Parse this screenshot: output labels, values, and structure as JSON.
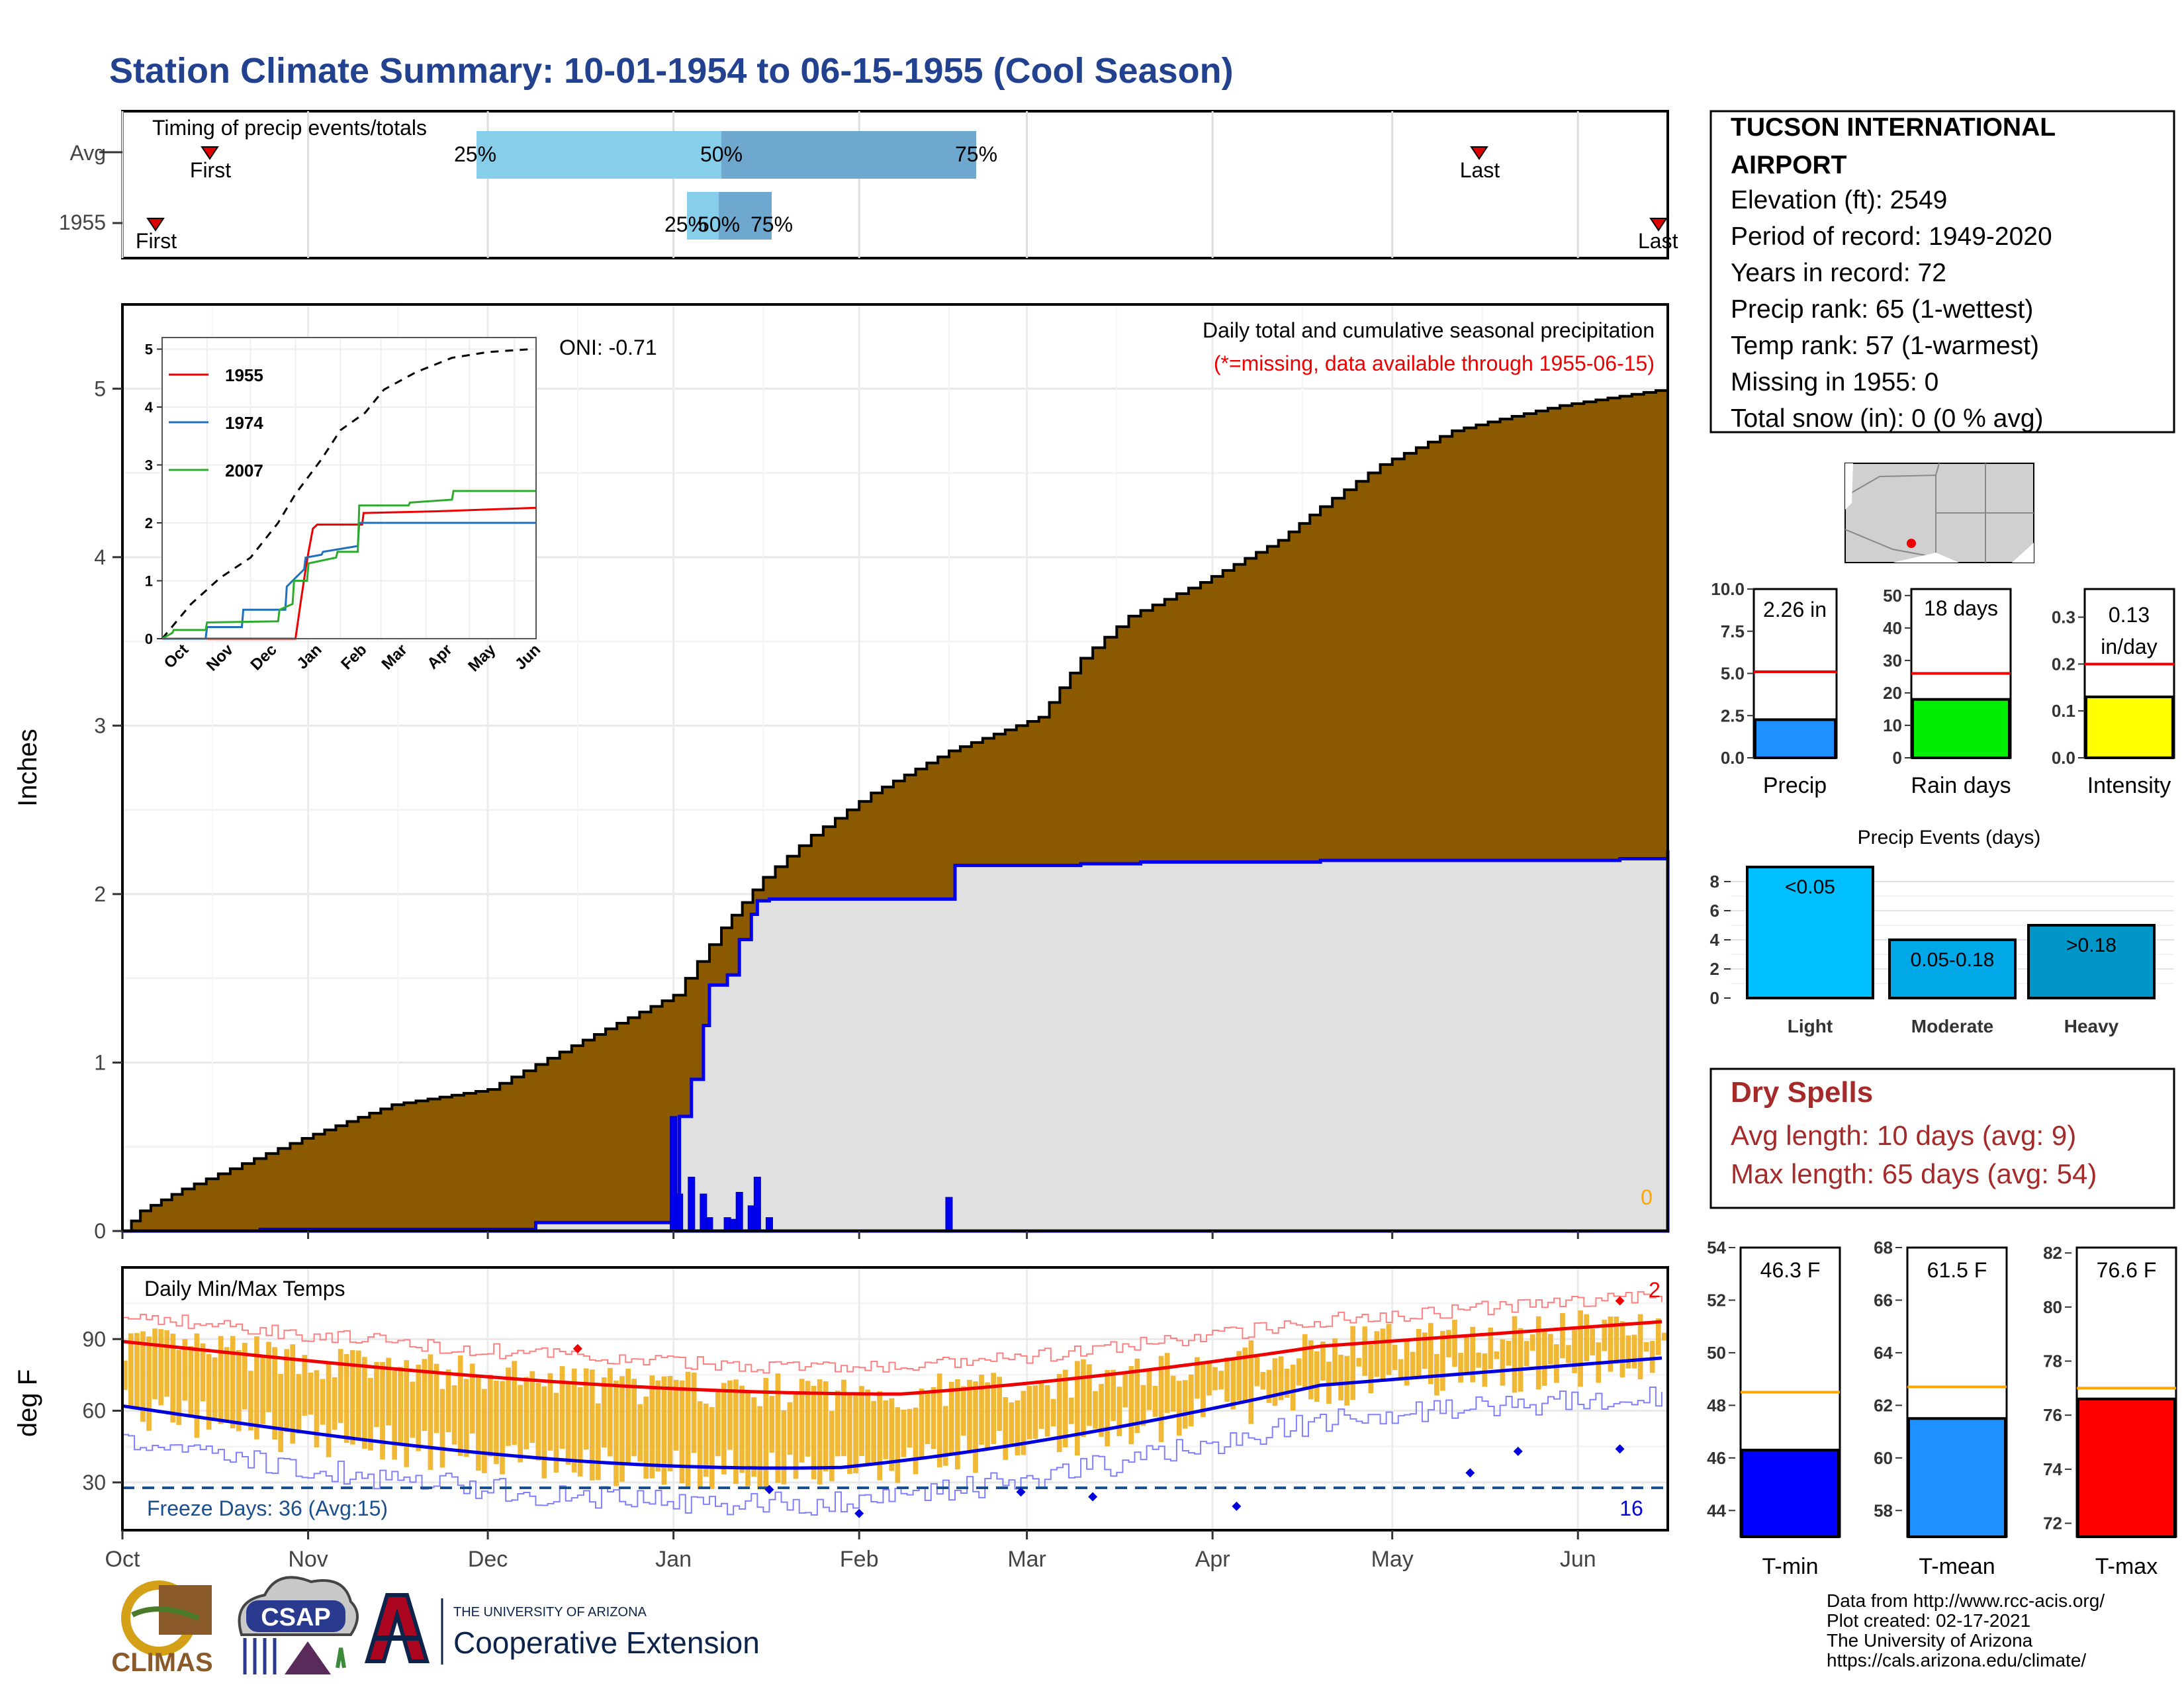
{
  "title": "Station Climate Summary: 10-01-1954 to 06-15-1955 (Cool Season)",
  "months": [
    "Oct",
    "Nov",
    "Dec",
    "Jan",
    "Feb",
    "Mar",
    "Apr",
    "May",
    "Jun"
  ],
  "timing": {
    "label": "Timing of precip events/totals",
    "rows": [
      {
        "name": "Avg",
        "first": "First",
        "last": "Last",
        "q25": "25%",
        "q50": "50%",
        "q75": "75%"
      },
      {
        "name": "1955",
        "first": "First",
        "last": "Last",
        "q25": "25%",
        "q50": "50%",
        "q75": "75%"
      }
    ]
  },
  "precip": {
    "ylabel": "Inches",
    "yticks": [
      "0",
      "1",
      "2",
      "3",
      "4",
      "5"
    ],
    "oni": "ONI: -0.71",
    "note1": "Daily total and cumulative seasonal precipitation",
    "note2": "(*=missing, data available through 1955-06-15)",
    "missing_count": "0"
  },
  "inset": {
    "yticks": [
      "0",
      "1",
      "2",
      "3",
      "4",
      "5"
    ],
    "months": [
      "Oct",
      "Nov",
      "Dec",
      "Jan",
      "Feb",
      "Mar",
      "Apr",
      "May",
      "Jun"
    ],
    "legend": [
      "1955",
      "1974",
      "2007"
    ]
  },
  "temps": {
    "label": "Daily Min/Max Temps",
    "ylabel": "deg F",
    "yticks": [
      "30",
      "60",
      "90"
    ],
    "freeze": "Freeze Days: 36 (Avg:15)",
    "freeze_count": "16",
    "record_count": "2"
  },
  "station": {
    "name1": "TUCSON INTERNATIONAL",
    "name2": "AIRPORT",
    "lines": [
      "Elevation (ft): 2549",
      "Period of record: 1949-2020",
      "Years in record: 72",
      "Precip rank: 65 (1-wettest)",
      "Temp rank: 57 (1-warmest)",
      "Missing in 1955: 0",
      "Total snow (in): 0 (0 % avg)"
    ]
  },
  "mini": [
    {
      "value": "2.26 in",
      "value2": "",
      "label": "Precip",
      "ticks": [
        "0.0",
        "2.5",
        "5.0",
        "7.5",
        "10.0"
      ],
      "color": "#1e90ff"
    },
    {
      "value": "18 days",
      "value2": "",
      "label": "Rain days",
      "ticks": [
        "0",
        "10",
        "20",
        "30",
        "40",
        "50"
      ],
      "color": "#00ee00"
    },
    {
      "value": "0.13",
      "value2": "in/day",
      "label": "Intensity",
      "ticks": [
        "0.0",
        "0.1",
        "0.2",
        "0.3"
      ],
      "color": "#ffff00"
    }
  ],
  "events": {
    "title": "Precip Events (days)",
    "yticks": [
      "0",
      "2",
      "4",
      "6",
      "8"
    ],
    "bars": [
      {
        "label": "Light",
        "text": "<0.05",
        "color": "#00bfff"
      },
      {
        "label": "Moderate",
        "text": "0.05-0.18",
        "color": "#00a8e8"
      },
      {
        "label": "Heavy",
        "text": ">0.18",
        "color": "#0096c7"
      }
    ]
  },
  "dry": {
    "title": "Dry Spells",
    "avg": "Avg length: 10 days (avg: 9)",
    "max": "Max length: 65 days (avg: 54)"
  },
  "tbars": [
    {
      "value": "46.3 F",
      "label": "T-min",
      "ticks": [
        "44",
        "46",
        "48",
        "50",
        "52",
        "54"
      ],
      "color": "#0000ff"
    },
    {
      "value": "61.5 F",
      "label": "T-mean",
      "ticks": [
        "58",
        "60",
        "62",
        "64",
        "66",
        "68"
      ],
      "color": "#1e90ff"
    },
    {
      "value": "76.6 F",
      "label": "T-max",
      "ticks": [
        "72",
        "74",
        "76",
        "78",
        "80",
        "82"
      ],
      "color": "#ff0000"
    }
  ],
  "credits": [
    "Data from http://www.rcc-acis.org/",
    "Plot created: 02-17-2021",
    "The University of Arizona",
    "https://cals.arizona.edu/climate/"
  ],
  "logos": {
    "climas": "CLIMAS",
    "csap": "CSAP",
    "ua_small": "THE UNIVERSITY OF ARIZONA",
    "ua_big": "Cooperative Extension"
  },
  "chart_data": [
    {
      "type": "area",
      "title": "Daily total and cumulative seasonal precipitation",
      "ylabel": "Inches",
      "ylim": [
        0,
        5.5
      ],
      "x_unit": "days since Oct 1",
      "series": [
        {
          "name": "cumulative average",
          "x": [
            0,
            3,
            10,
            20,
            30,
            45,
            61,
            75,
            92,
            100,
            107,
            115,
            125,
            138,
            153,
            160,
            168,
            180,
            193,
            200,
            210,
            222,
            230,
            240,
            258
          ],
          "values": [
            0,
            0.12,
            0.25,
            0.4,
            0.55,
            0.75,
            0.84,
            1.1,
            1.4,
            1.8,
            2.1,
            2.35,
            2.6,
            2.85,
            3.05,
            3.4,
            3.65,
            3.85,
            4.1,
            4.3,
            4.55,
            4.75,
            4.82,
            4.9,
            5.0
          ]
        },
        {
          "name": "1955 cumulative",
          "x": [
            0,
            23,
            69,
            92,
            93,
            95,
            97,
            98,
            101,
            103,
            105,
            106,
            108,
            138,
            139,
            160,
            170,
            180,
            200,
            250,
            258
          ],
          "values": [
            0,
            0.01,
            0.05,
            0.08,
            0.68,
            0.9,
            1.22,
            1.46,
            1.52,
            1.73,
            1.88,
            1.96,
            1.97,
            1.97,
            2.17,
            2.18,
            2.19,
            2.19,
            2.2,
            2.21,
            2.26
          ]
        },
        {
          "name": "1955 daily",
          "x": [
            92,
            93,
            95,
            97,
            98,
            101,
            102,
            103,
            105,
            106,
            108,
            138
          ],
          "values": [
            0.68,
            0.22,
            0.32,
            0.22,
            0.08,
            0.08,
            0.07,
            0.23,
            0.15,
            0.32,
            0.08,
            0.2
          ]
        }
      ]
    },
    {
      "type": "line",
      "inset": true,
      "ylim": [
        0,
        5
      ],
      "series": [
        {
          "name": "average",
          "x": [
            0,
            20,
            40,
            61,
            80,
            92,
            110,
            123,
            140,
            153,
            175,
            200,
            225,
            255
          ],
          "values": [
            0,
            0.6,
            1.05,
            1.4,
            2.0,
            2.5,
            3.1,
            3.6,
            3.9,
            4.3,
            4.6,
            4.85,
            4.95,
            5.0
          ]
        },
        {
          "name": "1955",
          "x": [
            0,
            92,
            96,
            99,
            101,
            104,
            107,
            138,
            139,
            190,
            258
          ],
          "values": [
            0,
            0,
            0.7,
            1.2,
            1.5,
            1.9,
            1.97,
            1.97,
            2.17,
            2.2,
            2.26
          ]
        },
        {
          "name": "1974",
          "x": [
            0,
            30,
            31,
            55,
            56,
            85,
            86,
            98,
            99,
            110,
            111,
            135,
            136,
            258
          ],
          "values": [
            0,
            0,
            0.2,
            0.2,
            0.5,
            0.5,
            0.9,
            1.2,
            1.4,
            1.45,
            1.5,
            1.6,
            2.0,
            2.0
          ]
        },
        {
          "name": "2007",
          "x": [
            0,
            7,
            8,
            30,
            31,
            80,
            81,
            90,
            91,
            100,
            101,
            120,
            121,
            135,
            136,
            170,
            171,
            200,
            201,
            258
          ],
          "values": [
            0,
            0.1,
            0.15,
            0.15,
            0.28,
            0.3,
            0.5,
            0.6,
            1.0,
            1.0,
            1.3,
            1.4,
            1.5,
            1.5,
            2.3,
            2.3,
            2.35,
            2.4,
            2.55,
            2.55
          ]
        }
      ]
    },
    {
      "type": "bar",
      "title": "Precip Events (days)",
      "categories": [
        "Light",
        "Moderate",
        "Heavy"
      ],
      "values": [
        9,
        4,
        5
      ],
      "ylim": [
        0,
        9
      ]
    },
    {
      "type": "bar",
      "categories": [
        "Precip",
        "Rain days",
        "Intensity"
      ],
      "values": [
        2.26,
        18,
        0.13
      ],
      "averages": [
        5.1,
        26,
        0.2
      ]
    },
    {
      "type": "bar",
      "categories": [
        "T-min",
        "T-mean",
        "T-max"
      ],
      "values": [
        46.3,
        61.5,
        76.6
      ],
      "averages": [
        48.5,
        62.7,
        77.0
      ]
    }
  ]
}
